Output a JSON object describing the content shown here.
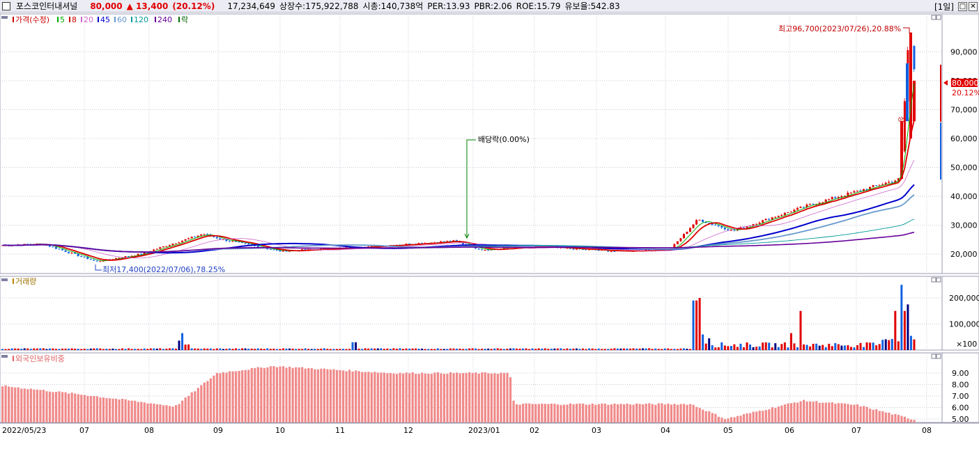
{
  "header": {
    "stock_name": "포스코인터내셔널",
    "price": "80,000",
    "change": "▲ 13,400",
    "change_pct": "(20.12%)",
    "volume": "17,234,649",
    "listed": "상장수:175,922,788",
    "cap": "시총:140,738억",
    "per": "PER:13.93",
    "pbr": "PBR:2.06",
    "roe": "ROE:15.79",
    "reserve": "유보율:542.83",
    "period": "[1일]"
  },
  "price_panel": {
    "legend": [
      "가격(수정)",
      "5",
      "8",
      "20",
      "45",
      "60",
      "120",
      "240",
      "락"
    ],
    "legend_colors": [
      "#cc0000",
      "#00aa00",
      "#cc0000",
      "#cc66cc",
      "#0000cc",
      "#6699cc",
      "#009999",
      "#660099",
      "#006600"
    ],
    "y_ticks": [
      "90,000",
      "80,000",
      "70,000",
      "60,000",
      "50,000",
      "40,000",
      "30,000",
      "20,000"
    ],
    "current_label": "80,000",
    "current_pct": "20.12%",
    "high_annotation": "최고96,700(2023/07/26),20.88%",
    "low_annotation": "최저17,400(2022/07/06),78.25%",
    "dividend_annotation": "배당락(0.00%)",
    "spike_marker": "상"
  },
  "volume_panel": {
    "legend": "거래량",
    "y_ticks": [
      "200,000",
      "100,000"
    ],
    "unit": "×100"
  },
  "foreign_panel": {
    "legend": "외국인보유비중",
    "y_ticks": [
      "9.00",
      "8.00",
      "7.00",
      "6.00",
      "5.00"
    ]
  },
  "x_axis": {
    "labels": [
      "2022/05/23",
      "07",
      "08",
      "09",
      "10",
      "11",
      "12",
      "2023/01",
      "02",
      "03",
      "04",
      "05",
      "06",
      "07",
      "08"
    ]
  },
  "chart_data": {
    "type": "candlestick",
    "price_key_points": [
      {
        "date": "2022/05/23",
        "close": 23000
      },
      {
        "date": "2022/06",
        "close": 23500
      },
      {
        "date": "2022/07/06",
        "close": 17400
      },
      {
        "date": "2022/08",
        "close": 20000
      },
      {
        "date": "2022/08",
        "close": 27000
      },
      {
        "date": "2022/09",
        "close": 25000
      },
      {
        "date": "2022/10",
        "close": 21000
      },
      {
        "date": "2022/11",
        "close": 22000
      },
      {
        "date": "2022/12",
        "close": 24500
      },
      {
        "date": "2023/01",
        "close": 21500
      },
      {
        "date": "2023/02",
        "close": 22500
      },
      {
        "date": "2023/03",
        "close": 21000
      },
      {
        "date": "2023/04",
        "close": 21500
      },
      {
        "date": "2023/04",
        "close": 32000
      },
      {
        "date": "2023/05",
        "close": 28000
      },
      {
        "date": "2023/06",
        "close": 37000
      },
      {
        "date": "2023/07",
        "close": 46000
      },
      {
        "date": "2023/07/26",
        "close": 96700
      },
      {
        "date": "2023/07",
        "close": 80000
      }
    ],
    "foreign_ratio_key_points": [
      {
        "date": "2022/05",
        "value": 7.9
      },
      {
        "date": "2022/07",
        "value": 7.1
      },
      {
        "date": "2022/08",
        "value": 6.1
      },
      {
        "date": "2022/09",
        "value": 9.0
      },
      {
        "date": "2022/10",
        "value": 9.6
      },
      {
        "date": "2022/12",
        "value": 9.0
      },
      {
        "date": "2023/01",
        "value": 9.0
      },
      {
        "date": "2023/02",
        "value": 6.3
      },
      {
        "date": "2023/04",
        "value": 6.3
      },
      {
        "date": "2023/05",
        "value": 5.0
      },
      {
        "date": "2023/06",
        "value": 6.6
      },
      {
        "date": "2023/07",
        "value": 6.2
      },
      {
        "date": "2023/07",
        "value": 4.9
      }
    ],
    "volume_spikes": [
      {
        "date": "2023/04",
        "value": 195000
      },
      {
        "date": "2023/07",
        "value": 250000
      }
    ]
  }
}
